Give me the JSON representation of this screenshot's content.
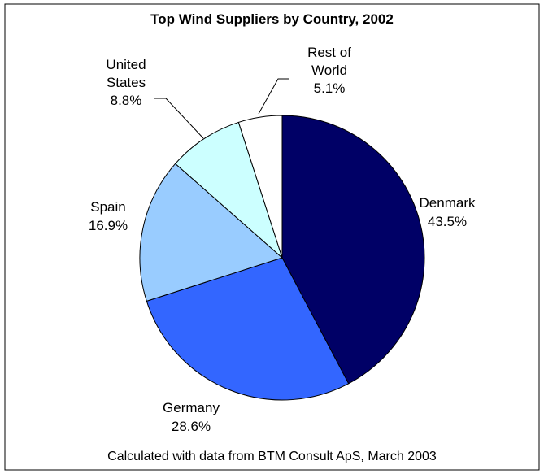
{
  "chart_data": {
    "type": "pie",
    "title": "Top Wind Suppliers by Country, 2002",
    "categories": [
      "Denmark",
      "Germany",
      "Spain",
      "United States",
      "Rest of World"
    ],
    "values": [
      43.5,
      28.6,
      16.9,
      8.8,
      5.1
    ],
    "value_labels": [
      "43.5%",
      "28.6%",
      "16.9%",
      "8.8%",
      "5.1%"
    ],
    "colors": [
      "#000066",
      "#3366FF",
      "#99CCFF",
      "#CCFFFF",
      "#FFFFFF"
    ],
    "note": "Calculated with data from BTM Consult ApS, March 2003"
  }
}
